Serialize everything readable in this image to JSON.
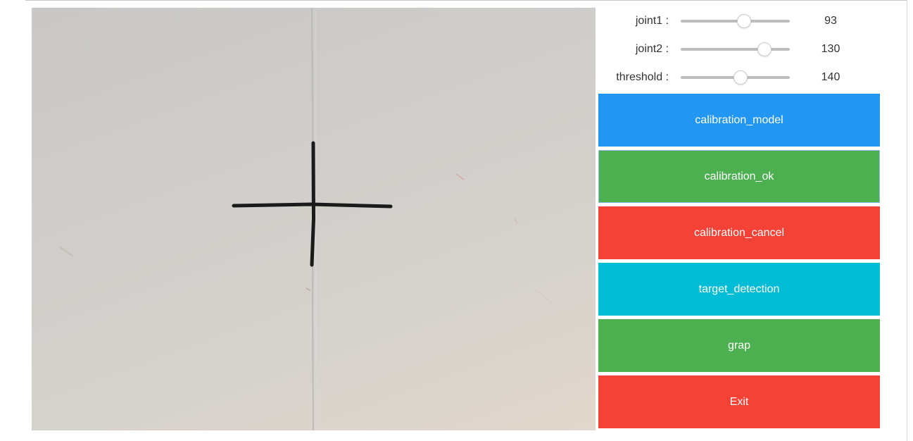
{
  "sliders": [
    {
      "label": "joint1 :",
      "value": "93",
      "level": 0.58
    },
    {
      "label": "joint2 :",
      "value": "130",
      "level": 0.77
    },
    {
      "label": "threshold :",
      "value": "140",
      "level": 0.55
    }
  ],
  "buttons": [
    {
      "label": "calibration_model",
      "color": "#2196F3"
    },
    {
      "label": "calibration_ok",
      "color": "#4CAF50"
    },
    {
      "label": "calibration_cancel",
      "color": "#F44336"
    },
    {
      "label": "target_detection",
      "color": "#00BCD4"
    },
    {
      "label": "grap",
      "color": "#4CAF50"
    },
    {
      "label": "Exit",
      "color": "#F44336"
    }
  ],
  "camera": {
    "marker_icon": "cross-mark-icon"
  }
}
